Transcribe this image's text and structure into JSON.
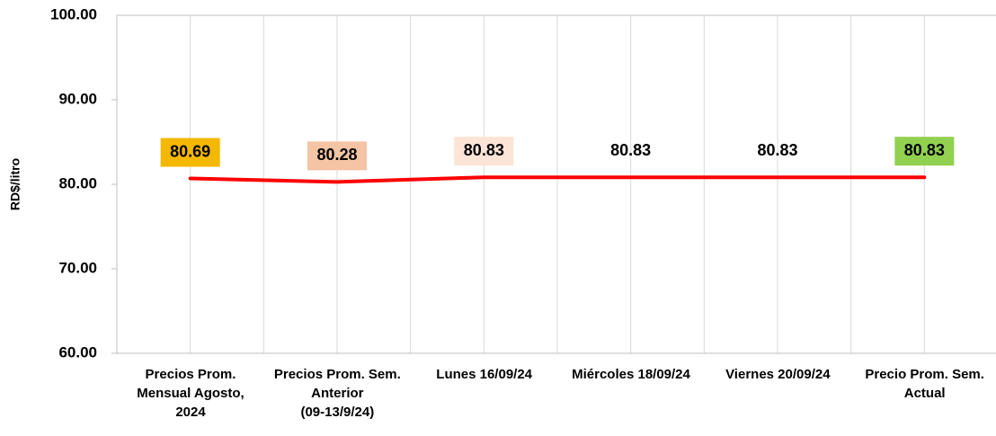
{
  "chart_data": {
    "type": "line",
    "ylabel": "RD$/litro",
    "categories": [
      "Precios Prom.\nMensual Agosto,\n2024",
      "Precios Prom. Sem.\nAnterior\n(09-13/9/24)",
      "Lunes  16/09/24",
      "Miércoles 18/09/24",
      "Viernes 20/09/24",
      "Precio Prom. Sem.\nActual"
    ],
    "series": [
      {
        "color": "#ff0000",
        "values": [
          80.69,
          80.28,
          80.83,
          80.83,
          80.83,
          80.83
        ],
        "label_colors": [
          "#f5b800",
          "#f4c4a4",
          "#fce4d6",
          "transparent",
          "transparent",
          "#92d050"
        ]
      }
    ],
    "ylim": [
      60,
      100
    ],
    "yticks": [
      {
        "value": 60,
        "label": "60.00"
      },
      {
        "value": 70,
        "label": "70.00"
      },
      {
        "value": 80,
        "label": "80.00"
      },
      {
        "value": 90,
        "label": "90.00"
      },
      {
        "value": 100,
        "label": "100.00"
      }
    ],
    "grid": "x"
  }
}
